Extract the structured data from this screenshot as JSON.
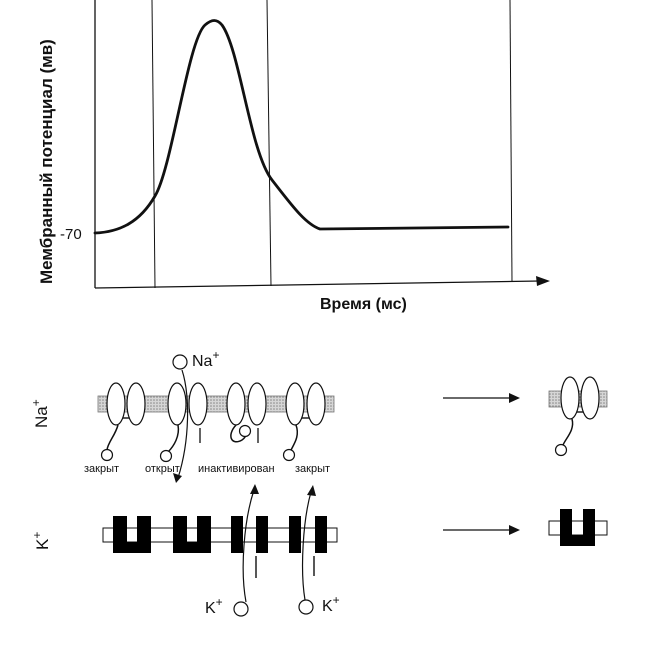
{
  "graph": {
    "ylabel": "Мембранный потенциал (мв)",
    "xlabel": "Время (мс)",
    "resting_tick": "-70"
  },
  "sodium": {
    "row_label": "Na",
    "ion_label": "Na",
    "states": [
      "закрыт",
      "открыт",
      "инактивирован",
      "закрыт"
    ]
  },
  "potassium": {
    "row_label": "K",
    "ion_labels": [
      "K",
      "K"
    ]
  },
  "superscript": "+",
  "colors": {
    "ink": "#111111",
    "membrane": "#bbbbbb",
    "channel": "#000000"
  }
}
